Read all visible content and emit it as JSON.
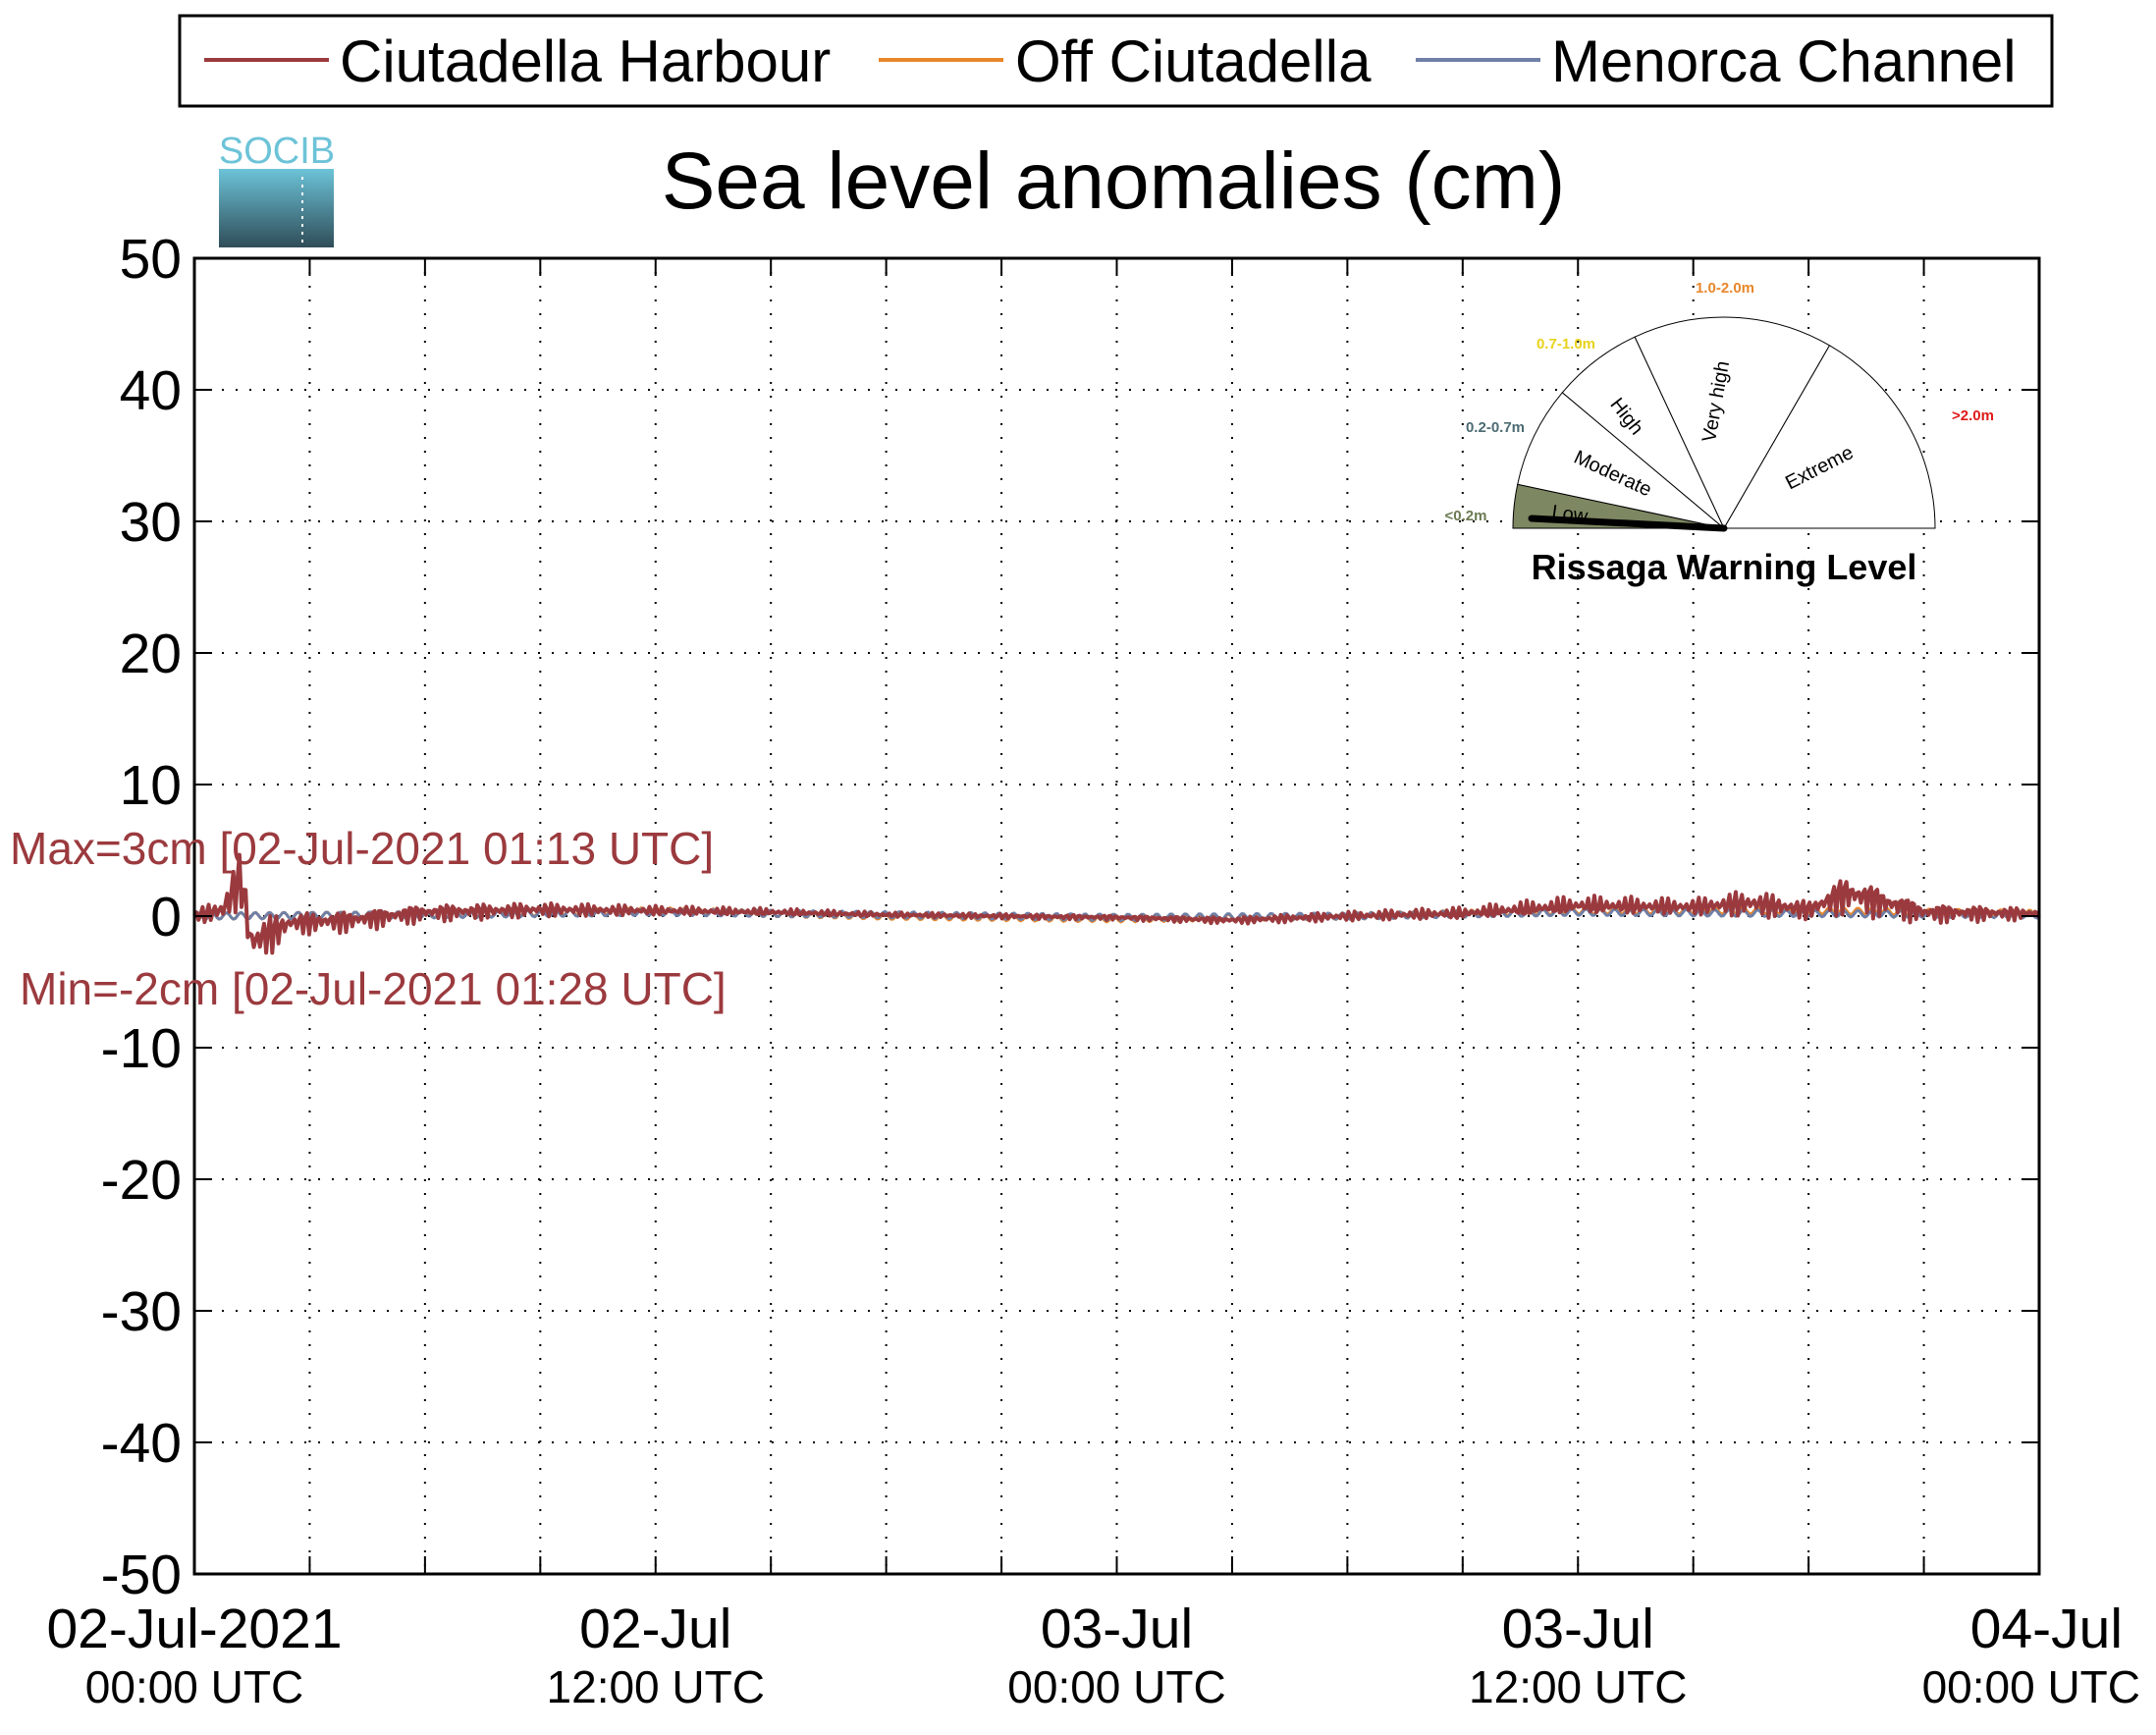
{
  "colors": {
    "ciutadella_harbour": "#9b3a3e",
    "off_ciutadella": "#e8862a",
    "menorca_channel": "#6f7fa6",
    "annotation": "#9b3a3e",
    "logo_top": "#6cc3d8",
    "logo_bottom": "#2f4d58"
  },
  "logo": {
    "text": "SOCIB",
    "icon": "socib-logo"
  },
  "chart_data": {
    "type": "line",
    "title": "Sea level anomalies (cm)",
    "xlabel": "",
    "ylabel": "",
    "ylim": [
      -50,
      50
    ],
    "yticks": [
      50,
      40,
      30,
      20,
      10,
      0,
      -10,
      -20,
      -30,
      -40,
      -50
    ],
    "xlim": [
      "2021-07-02 00:00",
      "2021-07-04 00:00"
    ],
    "xticks": [
      {
        "t": "2021-07-02 00:00",
        "date": "02-Jul-2021",
        "time": "00:00 UTC"
      },
      {
        "t": "2021-07-02 12:00",
        "date": "02-Jul",
        "time": "12:00 UTC"
      },
      {
        "t": "2021-07-03 00:00",
        "date": "03-Jul",
        "time": "00:00 UTC"
      },
      {
        "t": "2021-07-03 12:00",
        "date": "03-Jul",
        "time": "12:00 UTC"
      },
      {
        "t": "2021-07-04 00:00",
        "date": "04-Jul",
        "time": "00:00 UTC"
      }
    ],
    "minor_tick_hours": 3,
    "grid": true,
    "legend_position": "top",
    "series": [
      {
        "name": "Ciutadella Harbour",
        "x": [
          "2021-07-02 00:00",
          "2021-07-02 00:45",
          "2021-07-02 01:13",
          "2021-07-02 01:28",
          "2021-07-02 02:30",
          "2021-07-02 04:00",
          "2021-07-02 06:00",
          "2021-07-02 09:00",
          "2021-07-02 12:00",
          "2021-07-02 15:00",
          "2021-07-02 18:00",
          "2021-07-02 21:00",
          "2021-07-03 00:00",
          "2021-07-03 03:00",
          "2021-07-03 06:00",
          "2021-07-03 09:00",
          "2021-07-03 12:00",
          "2021-07-03 15:00",
          "2021-07-03 16:30",
          "2021-07-03 18:00",
          "2021-07-03 19:00",
          "2021-07-03 21:00",
          "2021-07-04 00:00"
        ],
        "y": [
          0,
          0.5,
          3,
          -2,
          -0.5,
          -0.3,
          0.3,
          0.5,
          0.4,
          0.3,
          0.1,
          0,
          -0.1,
          -0.3,
          0,
          0.2,
          0.8,
          0.7,
          1.0,
          0.5,
          1.8,
          0.3,
          0.2
        ],
        "amplitude": [
          0.3,
          1.5,
          2.5,
          2.5,
          1.0,
          1.0,
          0.8,
          0.6,
          0.4,
          0.3,
          0.2,
          0.2,
          0.2,
          0.3,
          0.4,
          0.5,
          0.8,
          0.7,
          1.2,
          0.8,
          1.8,
          0.9,
          0.5
        ]
      },
      {
        "name": "Off Ciutadella",
        "x": [
          "2021-07-02 00:00",
          "2021-07-02 06:00",
          "2021-07-02 12:00",
          "2021-07-02 18:00",
          "2021-07-03 00:00",
          "2021-07-03 06:00",
          "2021-07-03 12:00",
          "2021-07-03 18:00",
          "2021-07-04 00:00"
        ],
        "y": [
          0,
          0.1,
          0.4,
          0,
          -0.2,
          0,
          0.4,
          0.4,
          0.2
        ]
      },
      {
        "name": "Menorca Channel",
        "x": [
          "2021-07-02 00:00",
          "2021-07-02 06:00",
          "2021-07-02 12:00",
          "2021-07-02 18:00",
          "2021-07-03 00:00",
          "2021-07-03 06:00",
          "2021-07-03 12:00",
          "2021-07-03 18:00",
          "2021-07-04 00:00"
        ],
        "y": [
          0,
          0.1,
          0.3,
          0.1,
          -0.1,
          0,
          0.3,
          0.2,
          0.1
        ]
      }
    ],
    "annotations": {
      "max": "Max=3cm [02-Jul-2021 01:13 UTC]",
      "min": "Min=-2cm [02-Jul-2021 01:28 UTC]"
    }
  },
  "gauge": {
    "title": "Rissaga Warning Level",
    "needle_value": "Low",
    "sectors": [
      {
        "name": "Low",
        "range": "<0.2m",
        "range_color": "#6b7a52",
        "fill": "#7d8762"
      },
      {
        "name": "Moderate",
        "range": "0.2-0.7m",
        "range_color": "#4d6b73",
        "fill": "none"
      },
      {
        "name": "High",
        "range": "0.7-1.0m",
        "range_color": "#e8d21a",
        "fill": "none"
      },
      {
        "name": "Very high",
        "range": "1.0-2.0m",
        "range_color": "#e8862a",
        "fill": "none"
      },
      {
        "name": "Extreme",
        "range": ">2.0m",
        "range_color": "#e01a1a",
        "fill": "none"
      }
    ]
  }
}
